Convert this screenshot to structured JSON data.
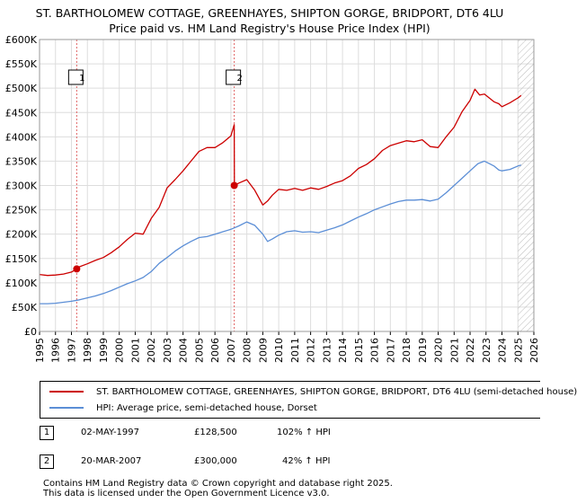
{
  "title_line1": "ST. BARTHOLOMEW COTTAGE, GREENHAYES, SHIPTON GORGE, BRIDPORT, DT6 4LU",
  "title_line2": "Price paid vs. HM Land Registry's House Price Index (HPI)",
  "colors": {
    "property": "#cc0000",
    "hpi": "#5b8ed6",
    "marker_line": "#e06060",
    "hatch": "#bbbbbb",
    "grid": "#dddddd"
  },
  "legend": {
    "property_label": "ST. BARTHOLOMEW COTTAGE, GREENHAYES, SHIPTON GORGE, BRIDPORT, DT6 4LU (semi-detached house)",
    "hpi_label": "HPI: Average price, semi-detached house, Dorset"
  },
  "transactions": [
    {
      "num": "1",
      "date": "02-MAY-1997",
      "price": "£128,500",
      "hpi_change": "102% ↑ HPI"
    },
    {
      "num": "2",
      "date": "20-MAR-2007",
      "price": "£300,000",
      "hpi_change": "42% ↑ HPI"
    }
  ],
  "footer_line1": "Contains HM Land Registry data © Crown copyright and database right 2025.",
  "footer_line2": "This data is licensed under the Open Government Licence v3.0.",
  "chart_data": {
    "type": "line",
    "title": "ST. BARTHOLOMEW COTTAGE, GREENHAYES, SHIPTON GORGE, BRIDPORT, DT6 4LU — Price paid vs. HM Land Registry's House Price Index (HPI)",
    "xlim": [
      1995,
      2026
    ],
    "ylim": [
      0,
      600000
    ],
    "x_ticks": [
      1995,
      1996,
      1997,
      1998,
      1999,
      2000,
      2001,
      2002,
      2003,
      2004,
      2005,
      2006,
      2007,
      2008,
      2009,
      2010,
      2011,
      2012,
      2013,
      2014,
      2015,
      2016,
      2017,
      2018,
      2019,
      2020,
      2021,
      2022,
      2023,
      2024,
      2025,
      2026
    ],
    "y_ticks": [
      {
        "value": 0,
        "label": "£0"
      },
      {
        "value": 50000,
        "label": "£50K"
      },
      {
        "value": 100000,
        "label": "£100K"
      },
      {
        "value": 150000,
        "label": "£150K"
      },
      {
        "value": 200000,
        "label": "£200K"
      },
      {
        "value": 250000,
        "label": "£250K"
      },
      {
        "value": 300000,
        "label": "£300K"
      },
      {
        "value": 350000,
        "label": "£350K"
      },
      {
        "value": 400000,
        "label": "£400K"
      },
      {
        "value": 450000,
        "label": "£450K"
      },
      {
        "value": 500000,
        "label": "£500K"
      },
      {
        "value": 550000,
        "label": "£550K"
      },
      {
        "value": 600000,
        "label": "£600K"
      }
    ],
    "grid": true,
    "future_hatch_from": 2025.0,
    "series": [
      {
        "name": "ST. BARTHOLOMEW COTTAGE, GREENHAYES, SHIPTON GORGE, BRIDPORT, DT6 4LU (semi-detached house)",
        "x": [
          1995.0,
          1995.5,
          1996.0,
          1996.5,
          1997.0,
          1997.33,
          1997.5,
          1998.0,
          1998.5,
          1999.0,
          1999.5,
          2000.0,
          2000.5,
          2001.0,
          2001.5,
          2002.0,
          2002.5,
          2003.0,
          2003.5,
          2004.0,
          2004.5,
          2005.0,
          2005.5,
          2006.0,
          2006.5,
          2007.0,
          2007.21,
          2007.22,
          2007.5,
          2008.0,
          2008.5,
          2009.0,
          2009.3,
          2009.6,
          2010.0,
          2010.5,
          2011.0,
          2011.5,
          2012.0,
          2012.5,
          2013.0,
          2013.5,
          2014.0,
          2014.5,
          2015.0,
          2015.5,
          2016.0,
          2016.5,
          2017.0,
          2017.5,
          2018.0,
          2018.5,
          2019.0,
          2019.5,
          2020.0,
          2020.5,
          2021.0,
          2021.5,
          2022.0,
          2022.3,
          2022.6,
          2022.9,
          2023.2,
          2023.5,
          2023.8,
          2024.0,
          2024.5,
          2025.0,
          2025.2
        ],
        "values": [
          117000,
          115000,
          116000,
          118000,
          122000,
          128500,
          133000,
          139000,
          146000,
          152000,
          162000,
          174000,
          189000,
          202000,
          200000,
          232000,
          255000,
          295000,
          312000,
          330000,
          350000,
          370000,
          378000,
          378000,
          388000,
          402000,
          425000,
          300000,
          305000,
          312000,
          290000,
          260000,
          268000,
          280000,
          292000,
          290000,
          294000,
          290000,
          295000,
          292000,
          298000,
          305000,
          310000,
          320000,
          335000,
          343000,
          355000,
          372000,
          382000,
          387000,
          392000,
          390000,
          394000,
          380000,
          378000,
          400000,
          420000,
          452000,
          475000,
          498000,
          486000,
          488000,
          480000,
          472000,
          468000,
          462000,
          470000,
          480000,
          485000
        ]
      },
      {
        "name": "HPI: Average price, semi-detached house, Dorset",
        "x": [
          1995.0,
          1995.5,
          1996.0,
          1996.5,
          1997.0,
          1997.5,
          1998.0,
          1998.5,
          1999.0,
          1999.5,
          2000.0,
          2000.5,
          2001.0,
          2001.5,
          2002.0,
          2002.5,
          2003.0,
          2003.5,
          2004.0,
          2004.5,
          2005.0,
          2005.5,
          2006.0,
          2006.5,
          2007.0,
          2007.5,
          2008.0,
          2008.5,
          2009.0,
          2009.3,
          2009.6,
          2010.0,
          2010.5,
          2011.0,
          2011.5,
          2012.0,
          2012.5,
          2013.0,
          2013.5,
          2014.0,
          2014.5,
          2015.0,
          2015.5,
          2016.0,
          2016.5,
          2017.0,
          2017.5,
          2018.0,
          2018.5,
          2019.0,
          2019.5,
          2020.0,
          2020.5,
          2021.0,
          2021.5,
          2022.0,
          2022.5,
          2022.9,
          2023.2,
          2023.5,
          2023.8,
          2024.0,
          2024.5,
          2025.0,
          2025.2
        ],
        "values": [
          57000,
          57000,
          58000,
          60000,
          62000,
          65000,
          69000,
          73000,
          78000,
          84000,
          91000,
          98000,
          104000,
          111000,
          123000,
          140000,
          152000,
          165000,
          176000,
          185000,
          193000,
          195000,
          200000,
          205000,
          210000,
          217000,
          225000,
          218000,
          200000,
          185000,
          190000,
          198000,
          205000,
          207000,
          204000,
          205000,
          203000,
          208000,
          213000,
          219000,
          227000,
          235000,
          242000,
          250000,
          256000,
          262000,
          267000,
          270000,
          270000,
          271000,
          268000,
          272000,
          285000,
          300000,
          315000,
          330000,
          345000,
          350000,
          345000,
          340000,
          332000,
          330000,
          333000,
          340000,
          342000
        ]
      }
    ],
    "transactions": [
      {
        "label": "1",
        "x": 1997.33,
        "value": 128500
      },
      {
        "label": "2",
        "x": 2007.21,
        "value": 300000
      }
    ]
  }
}
